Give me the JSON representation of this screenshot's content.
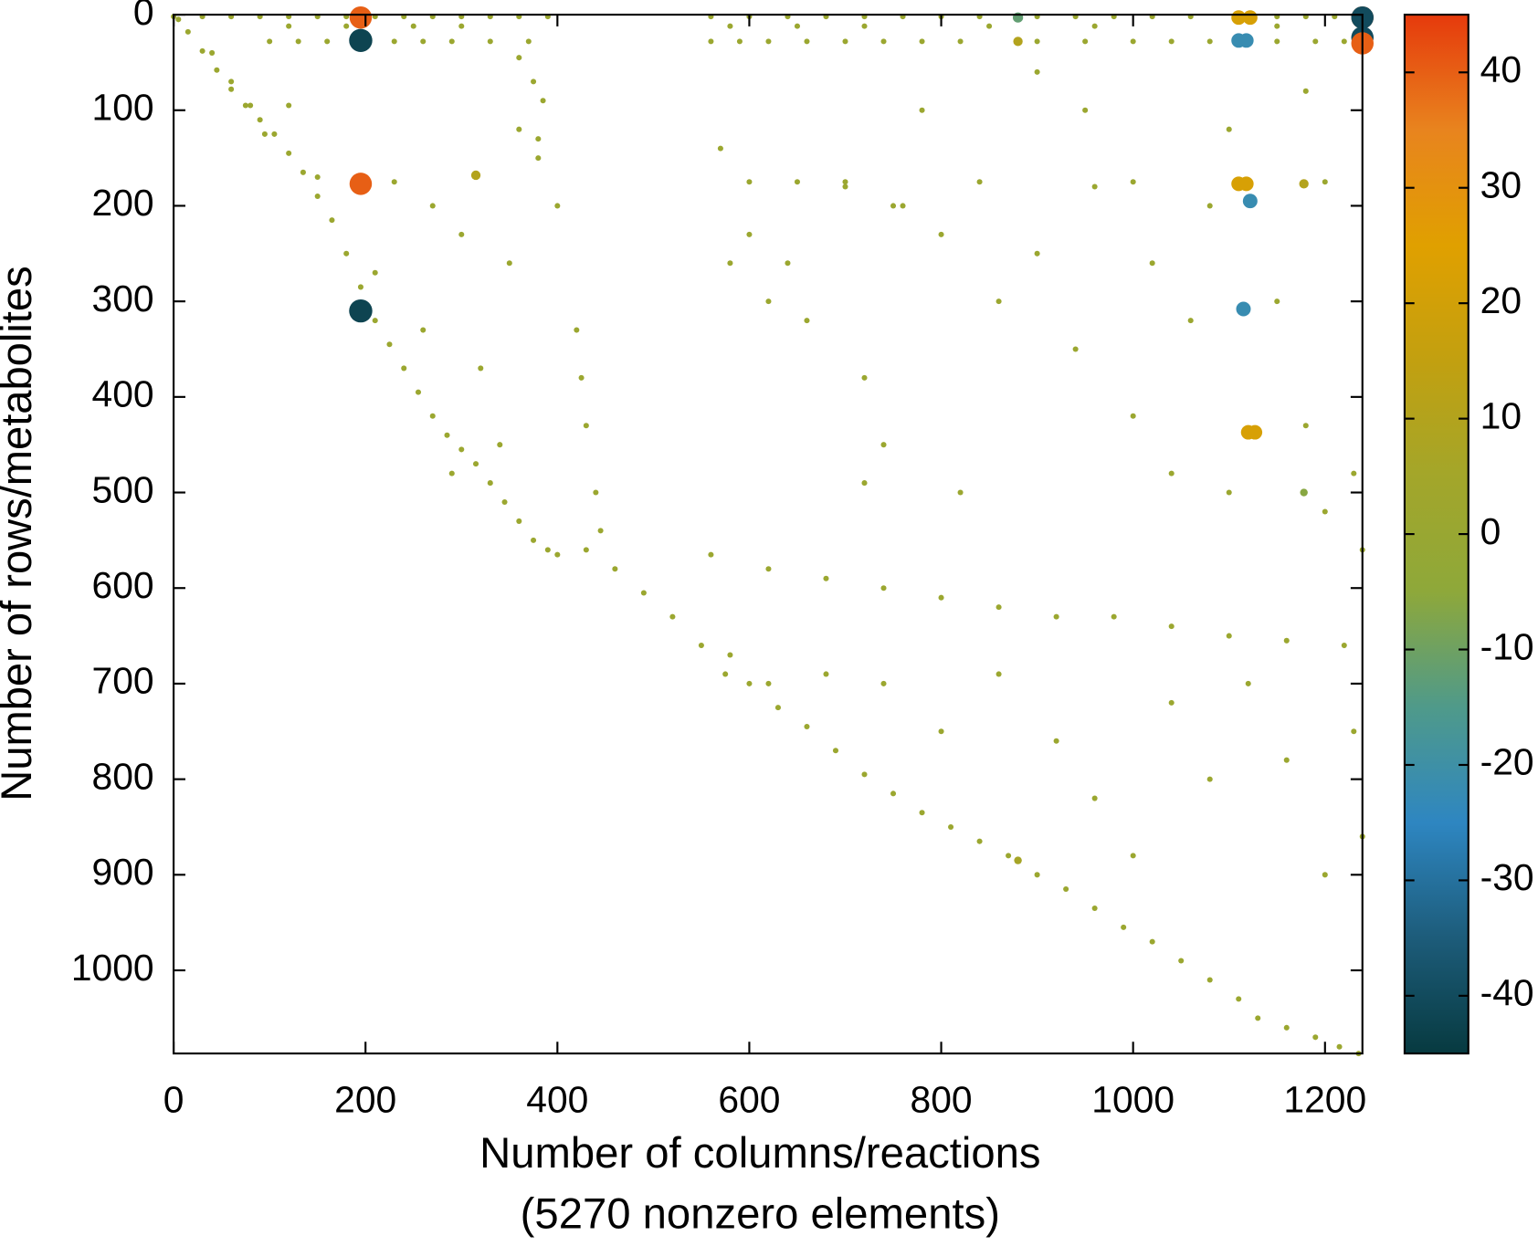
{
  "chart_data": {
    "type": "scatter",
    "x_label": "Number of columns/reactions",
    "x_sublabel": "(5270 nonzero elements)",
    "y_label": "Number of rows/metabolites",
    "xlim": [
      0,
      1239
    ],
    "ylim": [
      0,
      1087
    ],
    "y_inverted": true,
    "xticks": [
      0,
      200,
      400,
      600,
      800,
      1000,
      1200
    ],
    "yticks": [
      0,
      100,
      200,
      300,
      400,
      500,
      600,
      700,
      800,
      900,
      1000
    ],
    "clim": [
      -45,
      45
    ],
    "cticks": [
      -40,
      -30,
      -20,
      -10,
      0,
      10,
      20,
      30,
      40
    ],
    "colorscale": [
      "#073a40",
      "#1d5c7a",
      "#2e86c1",
      "#4f9a8a",
      "#8ea83a",
      "#a3a62a",
      "#c2a010",
      "#e0a000",
      "#e8841e",
      "#e63a0c"
    ],
    "x": [
      0,
      30,
      60,
      90,
      120,
      150,
      180,
      210,
      240,
      270,
      300,
      330,
      360,
      390,
      560,
      600,
      640,
      680,
      720,
      760,
      800,
      840,
      900,
      940,
      980,
      1020,
      1060,
      1150,
      1180,
      1210,
      100,
      130,
      160,
      230,
      260,
      290,
      330,
      370,
      560,
      590,
      620,
      660,
      700,
      740,
      780,
      820,
      900,
      950,
      1000,
      1040,
      1080,
      1150,
      1190,
      1220,
      120,
      180,
      250,
      300,
      580,
      650,
      720,
      850,
      960,
      1150,
      5,
      15,
      30,
      45,
      60,
      75,
      90,
      105,
      120,
      135,
      150,
      165,
      180,
      195,
      210,
      225,
      240,
      255,
      270,
      285,
      300,
      315,
      330,
      345,
      360,
      375,
      390,
      400,
      430,
      460,
      490,
      520,
      550,
      575,
      600,
      630,
      660,
      690,
      720,
      750,
      780,
      810,
      840,
      870,
      900,
      930,
      960,
      990,
      1020,
      1050,
      1080,
      1110,
      1130,
      1160,
      1190,
      1215,
      1235,
      40,
      60,
      80,
      95,
      360,
      375,
      385,
      360,
      380,
      420,
      425,
      430,
      440,
      445,
      560,
      620,
      680,
      740,
      800,
      860,
      920,
      980,
      1040,
      1100,
      1160,
      1220,
      120,
      150,
      230,
      270,
      300,
      350,
      210,
      260,
      320,
      340,
      290,
      380,
      400,
      570,
      600,
      620,
      640,
      660,
      700,
      720,
      740,
      760,
      800,
      820,
      860,
      900,
      940,
      960,
      1000,
      1020,
      1040,
      1060,
      1080,
      1100,
      1150,
      1180,
      1200,
      1230,
      1239,
      580,
      620,
      680,
      740,
      800,
      860,
      920,
      960,
      1000,
      1040,
      1080,
      1120,
      1160,
      1200,
      1230,
      1239,
      950,
      900,
      780,
      750,
      720,
      840,
      1000,
      1100,
      1200,
      1180,
      600,
      650,
      700,
      580,
      315,
      1178,
      880,
      1178,
      195,
      195,
      195,
      195,
      880,
      880,
      1110,
      1122,
      1110,
      1118,
      1110,
      1118,
      1122,
      1115,
      1120,
      1127,
      1239,
      1239,
      1239,
      1239
    ],
    "y": [
      2,
      2,
      2,
      2,
      2,
      2,
      2,
      2,
      2,
      2,
      2,
      2,
      2,
      2,
      2,
      2,
      2,
      2,
      2,
      2,
      2,
      2,
      2,
      2,
      2,
      2,
      2,
      2,
      2,
      2,
      28,
      28,
      28,
      28,
      28,
      28,
      28,
      28,
      28,
      28,
      28,
      28,
      28,
      28,
      28,
      28,
      28,
      28,
      28,
      28,
      28,
      28,
      28,
      28,
      12,
      12,
      12,
      12,
      12,
      12,
      12,
      12,
      12,
      12,
      5,
      18,
      38,
      58,
      78,
      95,
      110,
      125,
      145,
      165,
      190,
      215,
      250,
      285,
      320,
      345,
      370,
      395,
      420,
      440,
      455,
      470,
      490,
      510,
      530,
      550,
      560,
      565,
      560,
      580,
      605,
      630,
      660,
      690,
      700,
      725,
      745,
      770,
      795,
      815,
      835,
      850,
      865,
      880,
      900,
      915,
      935,
      955,
      970,
      990,
      1010,
      1030,
      1050,
      1060,
      1070,
      1080,
      1087,
      40,
      70,
      95,
      125,
      45,
      70,
      90,
      120,
      150,
      330,
      380,
      430,
      500,
      540,
      565,
      580,
      590,
      600,
      610,
      620,
      630,
      630,
      640,
      650,
      655,
      660,
      95,
      170,
      175,
      200,
      230,
      260,
      270,
      330,
      370,
      450,
      480,
      130,
      200,
      140,
      230,
      300,
      260,
      320,
      180,
      380,
      450,
      200,
      230,
      500,
      300,
      250,
      350,
      180,
      420,
      260,
      480,
      320,
      200,
      500,
      300,
      430,
      520,
      480,
      560,
      670,
      700,
      690,
      700,
      750,
      690,
      760,
      820,
      880,
      720,
      800,
      700,
      780,
      900,
      750,
      860,
      100,
      60,
      100,
      200,
      490,
      175,
      175,
      120,
      175,
      80,
      175,
      175,
      175,
      260,
      168,
      177,
      885,
      500,
      3,
      27,
      177,
      310,
      3,
      28,
      3,
      3,
      27,
      27,
      177,
      177,
      195,
      308,
      437,
      437,
      3,
      3,
      24,
      30
    ],
    "values": [
      1,
      1,
      1,
      1,
      1,
      1,
      1,
      1,
      1,
      1,
      1,
      1,
      1,
      1,
      1,
      1,
      1,
      1,
      1,
      1,
      1,
      1,
      1,
      1,
      1,
      1,
      1,
      1,
      1,
      1,
      1,
      1,
      1,
      1,
      1,
      1,
      1,
      1,
      1,
      1,
      1,
      1,
      1,
      1,
      1,
      1,
      1,
      1,
      1,
      1,
      1,
      1,
      1,
      1,
      1,
      1,
      1,
      1,
      1,
      1,
      1,
      1,
      1,
      1,
      1,
      1,
      1,
      1,
      1,
      1,
      1,
      1,
      1,
      1,
      1,
      1,
      1,
      1,
      1,
      1,
      1,
      1,
      1,
      1,
      1,
      1,
      1,
      1,
      1,
      1,
      1,
      1,
      1,
      1,
      1,
      1,
      1,
      1,
      1,
      1,
      1,
      1,
      1,
      1,
      1,
      1,
      1,
      1,
      1,
      1,
      1,
      1,
      1,
      1,
      1,
      1,
      1,
      1,
      1,
      1,
      1,
      1,
      1,
      1,
      1,
      1,
      1,
      1,
      1,
      1,
      1,
      1,
      1,
      1,
      1,
      1,
      1,
      1,
      1,
      1,
      1,
      1,
      1,
      1,
      1,
      1,
      1,
      1,
      1,
      1,
      1,
      1,
      1,
      1,
      1,
      1,
      1,
      1,
      1,
      1,
      1,
      1,
      1,
      1,
      1,
      1,
      1,
      1,
      1,
      1,
      1,
      1,
      1,
      1,
      1,
      1,
      1,
      1,
      1,
      1,
      1,
      1,
      1,
      1,
      1,
      1,
      1,
      1,
      1,
      1,
      1,
      1,
      1,
      1,
      1,
      1,
      1,
      1,
      1,
      1,
      1,
      1,
      1,
      1,
      1,
      1,
      1,
      1,
      1,
      1,
      1,
      1,
      1,
      1,
      1,
      1,
      10,
      10,
      6,
      -6,
      40,
      -42,
      40,
      -42,
      -12,
      10,
      22,
      22,
      -22,
      -22,
      22,
      22,
      -22,
      -22,
      22,
      22,
      40,
      -40,
      -40,
      40
    ]
  }
}
